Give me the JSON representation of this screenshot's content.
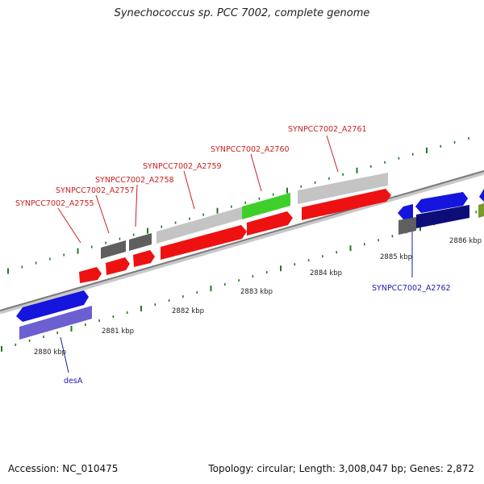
{
  "header": {
    "title": "Synechococcus sp. PCC 7002, complete genome"
  },
  "footer": {
    "accession": "Accession: NC_010475",
    "summary": "Topology: circular; Length: 3,008,047 bp; Genes: 2,872"
  },
  "colors": {
    "backbone": "#8a8a8a",
    "tick": "#1f7a1f",
    "red_gene": "#ee1111",
    "gray_gene": "#bdbdbd",
    "dark_gray_gene": "#5f5f5f",
    "green_gene": "#33cc22",
    "blue_gene": "#1515dd",
    "navy_gene": "#0d0d7a",
    "lavender_gene": "#6c5fd0",
    "olive_gene": "#7a9a2a",
    "red_label": "#cc1f1f",
    "blue_label": "#1b1bb5"
  },
  "kbp_labels": [
    "2880 kbp",
    "2881 kbp",
    "2882 kbp",
    "2883 kbp",
    "2884 kbp",
    "2885 kbp",
    "2886 kbp"
  ],
  "gene_labels": {
    "a2755": "SYNPCC7002_A2755",
    "a2757": "SYNPCC7002_A2757",
    "a2758": "SYNPCC7002_A2758",
    "a2759": "SYNPCC7002_A2759",
    "a2760": "SYNPCC7002_A2760",
    "a2761": "SYNPCC7002_A2761",
    "a2762": "SYNPCC7002_A2762",
    "desA": "desA"
  }
}
